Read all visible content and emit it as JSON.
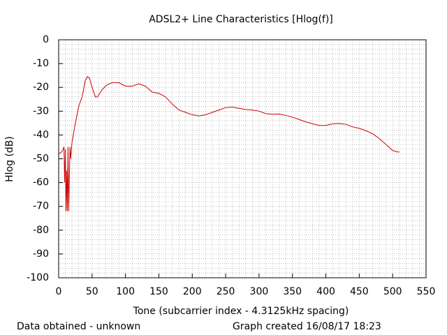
{
  "chart_data": {
    "type": "line",
    "title": "ADSL2+ Line Characteristics [Hlog(f)]",
    "x_label": "Tone (subcarrier index - 4.3125kHz spacing)",
    "y_label": "Hlog (dB)",
    "footer_left": "Data obtained - unknown",
    "footer_right": "Graph created 16/08/17 18:23",
    "color": "#cc0000",
    "grid": true,
    "x": [
      0,
      5,
      8,
      9,
      10,
      11,
      12,
      13,
      14,
      15,
      16,
      17,
      18,
      20,
      25,
      30,
      35,
      40,
      43,
      46,
      50,
      55,
      58,
      65,
      72,
      80,
      90,
      100,
      110,
      120,
      130,
      140,
      150,
      160,
      170,
      180,
      190,
      200,
      210,
      220,
      230,
      240,
      250,
      260,
      270,
      280,
      290,
      300,
      310,
      320,
      330,
      340,
      350,
      360,
      370,
      380,
      390,
      400,
      410,
      420,
      430,
      440,
      450,
      460,
      470,
      480,
      490,
      500,
      505,
      510
    ],
    "values": [
      -48,
      -47,
      -45,
      -60,
      -46,
      -72,
      -55,
      -72,
      -45,
      -72,
      -58,
      -45,
      -50,
      -43,
      -35,
      -28,
      -24,
      -17,
      -15.5,
      -16,
      -20,
      -24,
      -24,
      -21,
      -19,
      -18,
      -18,
      -19.5,
      -19.5,
      -18.5,
      -19.5,
      -22,
      -22.5,
      -24,
      -27,
      -29.5,
      -30.5,
      -31.5,
      -32,
      -31.5,
      -30.5,
      -29.5,
      -28.5,
      -28.3,
      -28.8,
      -29.3,
      -29.5,
      -30,
      -31,
      -31.3,
      -31.2,
      -31.8,
      -32.5,
      -33.5,
      -34.5,
      -35.3,
      -36,
      -36,
      -35.3,
      -35.2,
      -35.5,
      -36.6,
      -37.2,
      -38.2,
      -39.5,
      -41.5,
      -44,
      -46.5,
      -47,
      -47.2
    ],
    "xlim": [
      0,
      550
    ],
    "xticks": [
      0,
      50,
      100,
      150,
      200,
      250,
      300,
      350,
      400,
      450,
      500,
      550
    ],
    "ylim": [
      -100,
      0
    ],
    "yticks": [
      0,
      -10,
      -20,
      -30,
      -40,
      -50,
      -60,
      -70,
      -80,
      -90,
      -100
    ]
  }
}
